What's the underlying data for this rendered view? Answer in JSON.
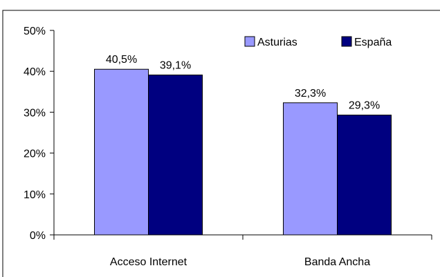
{
  "chart_data": {
    "type": "bar",
    "title": "",
    "xlabel": "",
    "ylabel": "",
    "categories": [
      "Acceso Internet",
      "Banda Ancha"
    ],
    "series": [
      {
        "name": "Asturias",
        "values": [
          40.5,
          32.3
        ],
        "labels": [
          "40,5%",
          "32,3%"
        ],
        "color": "#9999ff"
      },
      {
        "name": "España",
        "values": [
          39.1,
          29.3
        ],
        "labels": [
          "39,1%",
          "29,3%"
        ],
        "color": "#000080"
      }
    ],
    "ylim": [
      0,
      50
    ],
    "yticks": [
      0,
      10,
      20,
      30,
      40,
      50
    ],
    "ytick_labels": [
      "0%",
      "10%",
      "20%",
      "30%",
      "40%",
      "50%"
    ],
    "grid": false,
    "legend_position": "top-right"
  }
}
